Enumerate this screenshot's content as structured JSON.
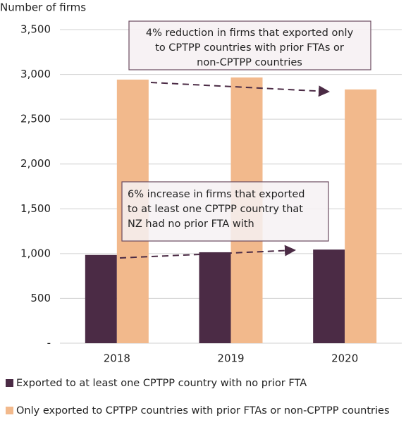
{
  "chart_data": {
    "type": "bar",
    "y_axis_label": "Number of firms",
    "categories": [
      "2018",
      "2019",
      "2020"
    ],
    "series": [
      {
        "name": "Exported to at least one CPTPP country with no prior FTA",
        "color": "#4b2b45",
        "values": [
          985,
          1015,
          1045
        ]
      },
      {
        "name": "Only exported to CPTPP countries with prior FTAs or non-CPTPP countries",
        "color": "#f2b98c",
        "values": [
          2942,
          2966,
          2832
        ]
      }
    ],
    "ylim": [
      0,
      3500
    ],
    "yticks": [
      {
        "value": 0,
        "label": "-"
      },
      500,
      {
        "value": 1000,
        "label": "1,000"
      },
      {
        "value": 1500,
        "label": "1,500"
      },
      {
        "value": 2000,
        "label": "2,000"
      },
      {
        "value": 2500,
        "label": "2,500"
      },
      {
        "value": 3000,
        "label": "3,000"
      },
      {
        "value": 3500,
        "label": "3,500"
      }
    ],
    "grid": true,
    "annotations": [
      [
        "4% reduction in firms that exported only",
        "to CPTPP countries with prior FTAs or",
        "non-CPTPP countries"
      ],
      [
        "6% increase in firms that exported",
        "to at least one CPTPP country that",
        "NZ had no prior FTA with"
      ]
    ]
  }
}
